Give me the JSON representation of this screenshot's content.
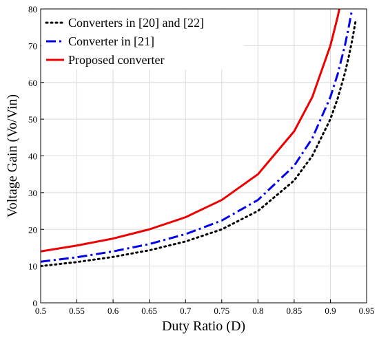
{
  "chart_data": {
    "type": "line",
    "xlabel": "Duty Ratio (D)",
    "ylabel": "Voltage Gain (Vo/Vin)",
    "xlim": [
      0.5,
      0.95
    ],
    "ylim": [
      0,
      80
    ],
    "x_ticks": [
      "0.5",
      "0.55",
      "0.6",
      "0.65",
      "0.7",
      "0.75",
      "0.8",
      "0.85",
      "0.9",
      "0.95"
    ],
    "y_ticks": [
      "0",
      "10",
      "20",
      "30",
      "40",
      "50",
      "60",
      "70",
      "80"
    ],
    "grid": true,
    "legend_position": "top-left",
    "series": [
      {
        "name": "Converters in [20] and [22]",
        "color": "#000000",
        "style": "dotted",
        "x": [
          0.5,
          0.55,
          0.6,
          0.65,
          0.7,
          0.75,
          0.8,
          0.85,
          0.875,
          0.9,
          0.91,
          0.92,
          0.925,
          0.93,
          0.935
        ],
        "y": [
          10,
          11.1,
          12.5,
          14.3,
          16.7,
          20,
          25,
          33.3,
          40,
          50,
          55.6,
          62.5,
          66.7,
          71.4,
          76.9
        ]
      },
      {
        "name": "Converter in [21]",
        "color": "#0000ee",
        "style": "dashdot",
        "x": [
          0.5,
          0.55,
          0.6,
          0.65,
          0.7,
          0.75,
          0.8,
          0.85,
          0.875,
          0.9,
          0.91,
          0.92,
          0.925,
          0.93
        ],
        "y": [
          11.2,
          12.4,
          14,
          16,
          18.7,
          22.4,
          28,
          37.3,
          44.8,
          56,
          62.2,
          70,
          74.7,
          80
        ]
      },
      {
        "name": "Proposed converter",
        "color": "#ee0000",
        "style": "solid",
        "x": [
          0.5,
          0.55,
          0.6,
          0.65,
          0.7,
          0.75,
          0.8,
          0.85,
          0.875,
          0.9,
          0.91,
          0.915
        ],
        "y": [
          14,
          15.6,
          17.5,
          20,
          23.3,
          28,
          35,
          46.7,
          56,
          70,
          77.8,
          82.4
        ]
      }
    ]
  }
}
